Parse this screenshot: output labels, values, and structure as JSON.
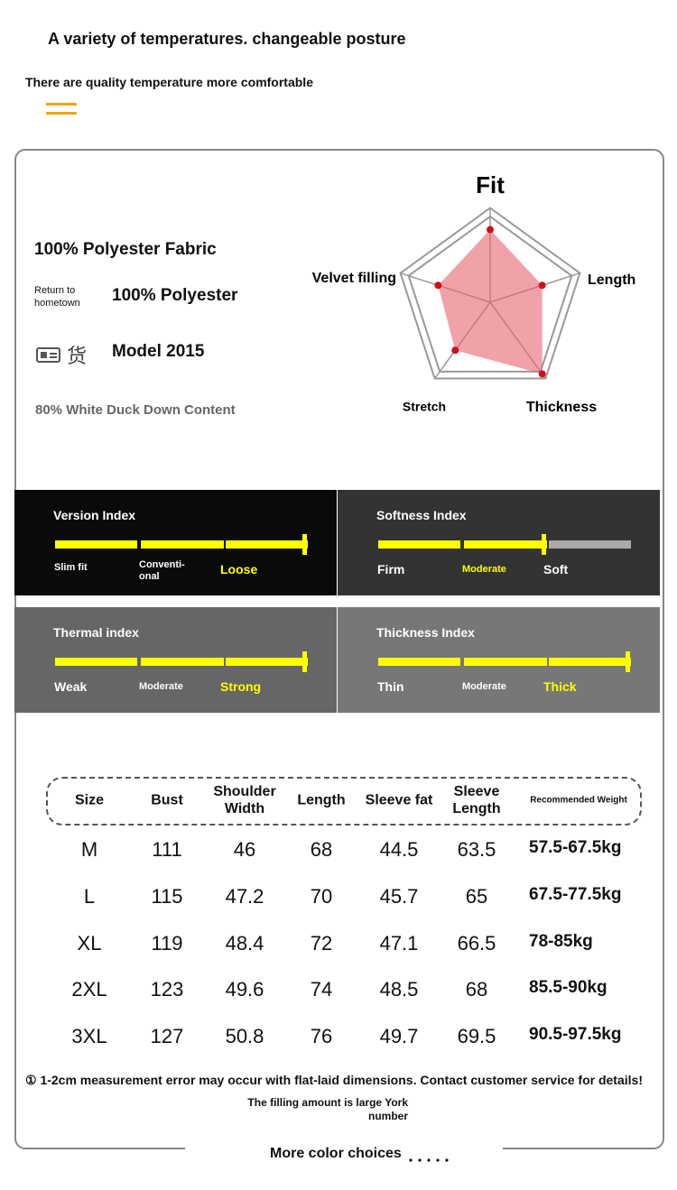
{
  "header": {
    "title": "A variety of temperatures. changeable posture",
    "subtitle": "There are quality temperature more comfortable"
  },
  "specs": {
    "fabric": "100% Polyester Fabric",
    "origin_label": "Return to hometown",
    "origin_value": "100% Polyester",
    "model_label": "货",
    "model_value": "Model 2015",
    "down": "80% White Duck Down Content"
  },
  "radar": {
    "max": 100,
    "levels": 4,
    "axes": [
      "Fit",
      "Length",
      "Thickness",
      "Stretch",
      "Velvet filling"
    ],
    "values": [
      77,
      58,
      94,
      63,
      58
    ]
  },
  "indexes": [
    {
      "title": "Version Index",
      "labels": [
        "Slim fit",
        "Conventi-onal",
        "Loose"
      ],
      "max": 3,
      "value": 3,
      "highlight": 2
    },
    {
      "title": "Softness Index",
      "labels": [
        "Firm",
        "Moderate",
        "Soft"
      ],
      "max": 3,
      "value": 2,
      "highlight": 1
    },
    {
      "title": "Thermal index",
      "labels": [
        "Weak",
        "Moderate",
        "Strong"
      ],
      "max": 3,
      "value": 3,
      "highlight": 2
    },
    {
      "title": "Thickness Index",
      "labels": [
        "Thin",
        "Moderate",
        "Thick"
      ],
      "max": 3,
      "value": 3,
      "highlight": 2
    }
  ],
  "size_table": {
    "columns": [
      "Size",
      "Bust",
      "Shoulder Width",
      "Length",
      "Sleeve fat",
      "Sleeve Length",
      "Recommended Weight"
    ],
    "rows": [
      [
        "M",
        111,
        46,
        68,
        44.5,
        63.5,
        "57.5-67.5kg"
      ],
      [
        "L",
        115,
        47.2,
        70,
        45.7,
        65,
        "67.5-77.5kg"
      ],
      [
        "XL",
        119,
        48.4,
        72,
        47.1,
        66.5,
        "78-85kg"
      ],
      [
        "2XL",
        123,
        49.6,
        74,
        48.5,
        68,
        "85.5-90kg"
      ],
      [
        "3XL",
        127,
        50.8,
        76,
        49.7,
        69.5,
        "90.5-97.5kg"
      ]
    ]
  },
  "footer": {
    "note": "① 1-2cm measurement error may occur with flat-laid dimensions. Contact customer service for details!",
    "filling": "The filling amount is large York number",
    "more": "More color choices"
  }
}
